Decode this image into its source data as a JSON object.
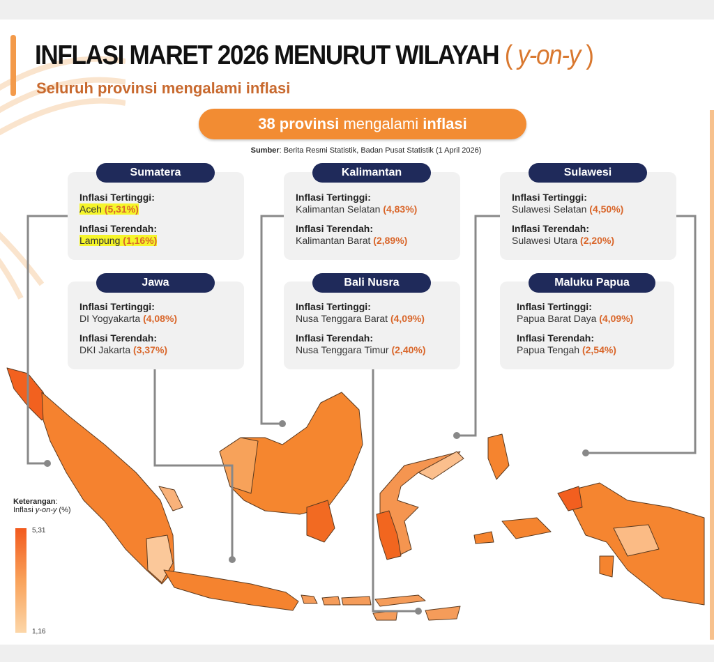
{
  "title": {
    "main": "INFLASI MARET 2026 MENURUT WILAYAH",
    "paren_open": "( ",
    "yoy": "y-on-y",
    "paren_close": " )"
  },
  "subtitle": "Seluruh provinsi mengalami inflasi",
  "banner": {
    "count": "38 provinsi",
    "middle": " mengalami ",
    "end": "inflasi"
  },
  "source": {
    "label": "Sumber",
    "text": ": Berita Resmi Statistik, Badan Pusat Statistik (1 April 2026)"
  },
  "labels": {
    "highest": "Inflasi Tertinggi:",
    "lowest": "Inflasi Terendah:"
  },
  "regions": [
    {
      "name": "Sumatera",
      "high_prov": "Aceh",
      "high_val": "(5,31%)",
      "low_prov": "Lampung",
      "low_val": "(1,16%)"
    },
    {
      "name": "Kalimantan",
      "high_prov": "Kalimantan Selatan",
      "high_val": "(4,83%)",
      "low_prov": "Kalimantan Barat",
      "low_val": "(2,89%)"
    },
    {
      "name": "Sulawesi",
      "high_prov": "Sulawesi Selatan",
      "high_val": "(4,50%)",
      "low_prov": "Sulawesi Utara",
      "low_val": "(2,20%)"
    },
    {
      "name": "Jawa",
      "high_prov": "DI Yogyakarta",
      "high_val": "(4,08%)",
      "low_prov": "DKI Jakarta",
      "low_val": "(3,37%)"
    },
    {
      "name": "Bali Nusra",
      "high_prov": "Nusa Tenggara Barat",
      "high_val": "(4,09%)",
      "low_prov": "Nusa Tenggara Timur",
      "low_val": "(2,40%)"
    },
    {
      "name": "Maluku Papua",
      "high_prov": "Papua Barat Daya",
      "high_val": "(4,09%)",
      "low_prov": "Papua Tengah",
      "low_val": "(2,54%)"
    }
  ],
  "legend": {
    "title": "Keterangan",
    "subtitle_pre": "Inflasi ",
    "subtitle_em": "y-on-y",
    "subtitle_post": " (%)",
    "max": "5,31",
    "min": "1,16",
    "color_max": "#f25a1e",
    "color_min": "#fcd6a8"
  },
  "colors": {
    "accent": "#f28c33",
    "header": "#1f2a5a",
    "highlight": "#f5f52a"
  }
}
